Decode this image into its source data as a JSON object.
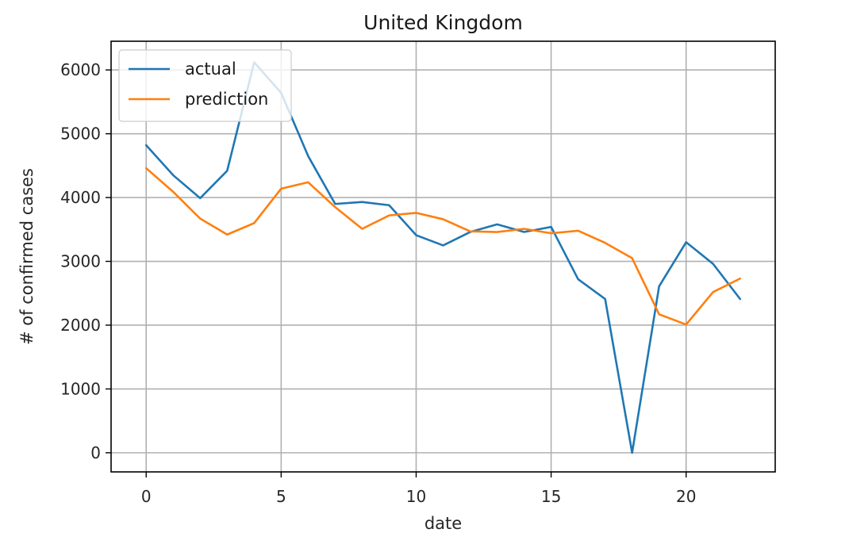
{
  "chart_data": {
    "type": "line",
    "title": "United Kingdom",
    "xlabel": "date",
    "ylabel": "# of confirmed cases",
    "xlim": [
      -1.3,
      23.3
    ],
    "ylim": [
      -300,
      6450
    ],
    "xticks": [
      0,
      5,
      10,
      15,
      20
    ],
    "yticks": [
      0,
      1000,
      2000,
      3000,
      4000,
      5000,
      6000
    ],
    "grid": true,
    "legend_position": "upper left",
    "x": [
      0,
      1,
      2,
      3,
      4,
      5,
      6,
      7,
      8,
      9,
      10,
      11,
      12,
      13,
      14,
      15,
      16,
      17,
      18,
      19,
      20,
      21,
      22
    ],
    "series": [
      {
        "name": "actual",
        "color": "#1f77b4",
        "values": [
          4820,
          4350,
          3990,
          4420,
          6120,
          5640,
          4650,
          3900,
          3930,
          3880,
          3410,
          3250,
          3460,
          3580,
          3460,
          3540,
          2720,
          2410,
          0,
          2610,
          3300,
          2960,
          2410
        ]
      },
      {
        "name": "prediction",
        "color": "#ff7f0e",
        "values": [
          4460,
          4090,
          3670,
          3420,
          3600,
          4140,
          4240,
          3850,
          3510,
          3720,
          3760,
          3660,
          3470,
          3460,
          3510,
          3440,
          3480,
          3290,
          3050,
          2170,
          2010,
          2520,
          2730
        ]
      }
    ]
  }
}
